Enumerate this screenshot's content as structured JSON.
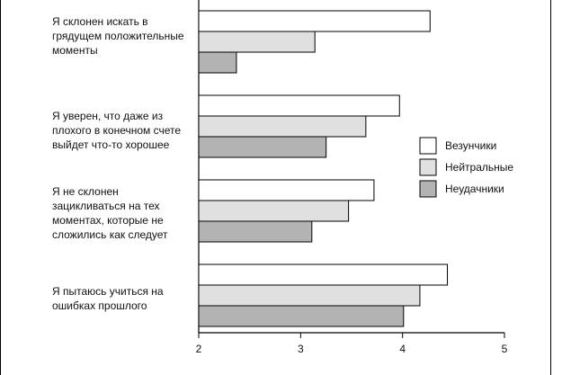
{
  "chart_data": {
    "type": "bar",
    "orientation": "horizontal",
    "categories": [
      "Я склонен искать в грядущем положительные моменты",
      "Я уверен, что даже из плохого в конечном счете выйдет что-то хорошее",
      "Я не склонен зацикливаться на тех моментах, которые не сложились как следует",
      "Я пытаюсь учиться на ошибках прошлого"
    ],
    "category_lines": [
      [
        "Я склонен искать в",
        "грядущем положительные",
        "моменты"
      ],
      [
        "Я уверен, что даже из",
        "плохого в конечном счете",
        "выйдет что-то хорошее"
      ],
      [
        "Я не склонен",
        "зацикливаться на тех",
        "моментах, которые не",
        "сложились как следует"
      ],
      [
        "Я пытаюсь учиться на",
        "ошибках прошлого"
      ]
    ],
    "series": [
      {
        "name": "Везунчики",
        "color": "#ffffff",
        "values": [
          4.27,
          3.97,
          3.72,
          4.44
        ]
      },
      {
        "name": "Нейтральные",
        "color": "#e0e0e0",
        "values": [
          3.14,
          3.64,
          3.47,
          4.17
        ]
      },
      {
        "name": "Неудачники",
        "color": "#b3b3b3",
        "values": [
          2.37,
          3.25,
          3.11,
          4.01
        ]
      }
    ],
    "xlim": [
      2,
      5
    ],
    "xticks": [
      "2",
      "3",
      "4",
      "5"
    ],
    "legend_position": "right",
    "grid": false
  }
}
